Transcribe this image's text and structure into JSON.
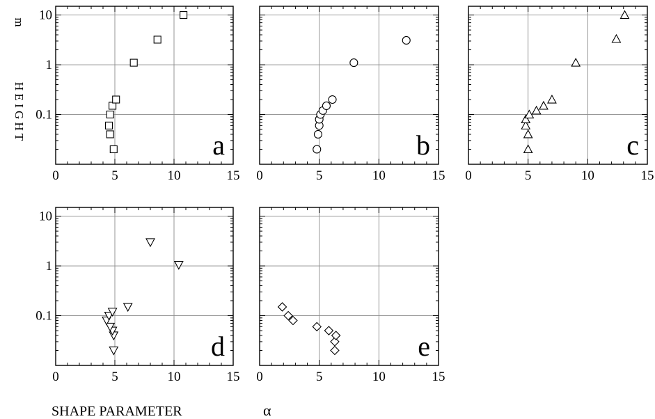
{
  "figure": {
    "ylabel": "H E I G H T",
    "yunit": "m",
    "xlabel": "SHAPE PARAMETER",
    "xsymbol": "α"
  },
  "chart_data": [
    {
      "type": "scatter",
      "panel": "a",
      "marker": "square",
      "xlim": [
        0,
        15
      ],
      "ylim": [
        0.01,
        15
      ],
      "yscale": "log",
      "grid": true,
      "xticks": [
        0,
        5,
        10,
        15
      ],
      "yticks": [
        0.1,
        1,
        10
      ],
      "ytick_labels": [
        "0.1",
        "1",
        "10"
      ],
      "points": [
        {
          "x": 4.9,
          "y": 0.02
        },
        {
          "x": 4.6,
          "y": 0.04
        },
        {
          "x": 4.5,
          "y": 0.06
        },
        {
          "x": 4.6,
          "y": 0.1
        },
        {
          "x": 4.8,
          "y": 0.15
        },
        {
          "x": 5.1,
          "y": 0.2
        },
        {
          "x": 6.6,
          "y": 1.1
        },
        {
          "x": 8.6,
          "y": 3.2
        },
        {
          "x": 10.8,
          "y": 10
        }
      ]
    },
    {
      "type": "scatter",
      "panel": "b",
      "marker": "circle",
      "xlim": [
        0,
        15
      ],
      "ylim": [
        0.01,
        15
      ],
      "yscale": "log",
      "grid": true,
      "xticks": [
        0,
        5,
        10,
        15
      ],
      "yticks": [],
      "ytick_labels": [],
      "points": [
        {
          "x": 4.8,
          "y": 0.02
        },
        {
          "x": 4.9,
          "y": 0.04
        },
        {
          "x": 5.0,
          "y": 0.06
        },
        {
          "x": 5.0,
          "y": 0.08
        },
        {
          "x": 5.1,
          "y": 0.1
        },
        {
          "x": 5.3,
          "y": 0.12
        },
        {
          "x": 5.6,
          "y": 0.15
        },
        {
          "x": 6.1,
          "y": 0.2
        },
        {
          "x": 7.9,
          "y": 1.1
        },
        {
          "x": 12.3,
          "y": 3.1
        }
      ]
    },
    {
      "type": "scatter",
      "panel": "c",
      "marker": "triangle-up",
      "xlim": [
        0,
        15
      ],
      "ylim": [
        0.01,
        15
      ],
      "yscale": "log",
      "grid": true,
      "xticks": [
        0,
        5,
        10,
        15
      ],
      "yticks": [],
      "ytick_labels": [],
      "points": [
        {
          "x": 5.0,
          "y": 0.02
        },
        {
          "x": 5.0,
          "y": 0.04
        },
        {
          "x": 4.8,
          "y": 0.06
        },
        {
          "x": 4.8,
          "y": 0.08
        },
        {
          "x": 5.1,
          "y": 0.1
        },
        {
          "x": 5.7,
          "y": 0.12
        },
        {
          "x": 6.3,
          "y": 0.15
        },
        {
          "x": 7.0,
          "y": 0.2
        },
        {
          "x": 9.0,
          "y": 1.1
        },
        {
          "x": 12.4,
          "y": 3.3
        },
        {
          "x": 13.1,
          "y": 10
        }
      ]
    },
    {
      "type": "scatter",
      "panel": "d",
      "marker": "triangle-down",
      "xlim": [
        0,
        15
      ],
      "ylim": [
        0.01,
        15
      ],
      "yscale": "log",
      "grid": true,
      "xticks": [
        0,
        5,
        10,
        15
      ],
      "yticks": [
        0.1,
        1,
        10
      ],
      "ytick_labels": [
        "0.1",
        "1",
        "10"
      ],
      "points": [
        {
          "x": 4.9,
          "y": 0.02
        },
        {
          "x": 4.9,
          "y": 0.04
        },
        {
          "x": 4.8,
          "y": 0.05
        },
        {
          "x": 4.6,
          "y": 0.06
        },
        {
          "x": 4.3,
          "y": 0.08
        },
        {
          "x": 4.5,
          "y": 0.1
        },
        {
          "x": 4.8,
          "y": 0.12
        },
        {
          "x": 6.1,
          "y": 0.15
        },
        {
          "x": 10.4,
          "y": 1.05
        },
        {
          "x": 8.0,
          "y": 3.0
        }
      ]
    },
    {
      "type": "scatter",
      "panel": "e",
      "marker": "diamond",
      "xlim": [
        0,
        15
      ],
      "ylim": [
        0.01,
        15
      ],
      "yscale": "log",
      "grid": true,
      "xticks": [
        0,
        5,
        10,
        15
      ],
      "yticks": [],
      "ytick_labels": [],
      "points": [
        {
          "x": 6.3,
          "y": 0.02
        },
        {
          "x": 6.3,
          "y": 0.03
        },
        {
          "x": 6.4,
          "y": 0.04
        },
        {
          "x": 5.8,
          "y": 0.05
        },
        {
          "x": 4.8,
          "y": 0.06
        },
        {
          "x": 2.8,
          "y": 0.08
        },
        {
          "x": 2.4,
          "y": 0.1
        },
        {
          "x": 1.9,
          "y": 0.15
        }
      ]
    }
  ]
}
